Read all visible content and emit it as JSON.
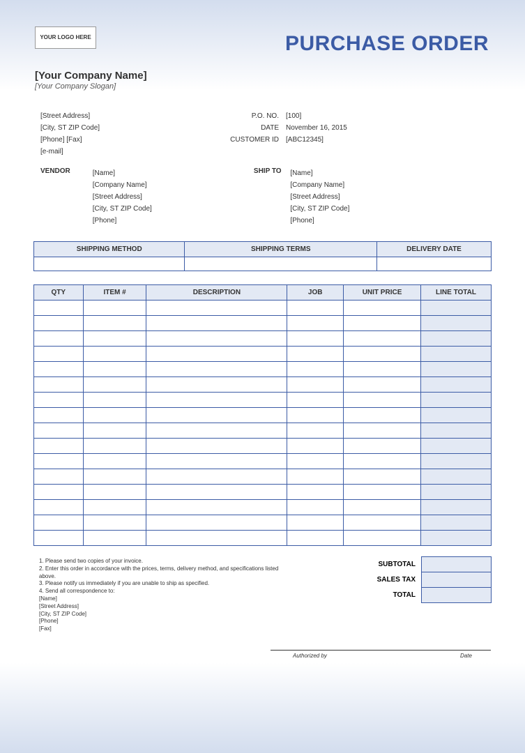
{
  "logo_placeholder": "YOUR LOGO HERE",
  "title": "PURCHASE ORDER",
  "company": {
    "name": "[Your Company Name]",
    "slogan": "[Your Company Slogan]",
    "street": "[Street Address]",
    "city": "[City, ST  ZIP Code]",
    "phone_fax": "[Phone]  [Fax]",
    "email": "[e-mail]"
  },
  "meta": {
    "po_no_label": "P.O. NO.",
    "po_no": "[100]",
    "date_label": "DATE",
    "date": "November 16, 2015",
    "cust_id_label": "CUSTOMER ID",
    "cust_id": "[ABC12345]"
  },
  "vendor": {
    "label": "VENDOR",
    "name": "[Name]",
    "company": "[Company Name]",
    "street": "[Street Address]",
    "city": "[City, ST  ZIP Code]",
    "phone": "[Phone]"
  },
  "shipto": {
    "label": "SHIP TO",
    "name": "[Name]",
    "company": "[Company Name]",
    "street": "[Street Address]",
    "city": "[City, ST  ZIP Code]",
    "phone": "[Phone]"
  },
  "ship_headers": {
    "method": "SHIPPING METHOD",
    "terms": "SHIPPING TERMS",
    "delivery": "DELIVERY DATE"
  },
  "item_headers": {
    "qty": "QTY",
    "item": "ITEM #",
    "desc": "DESCRIPTION",
    "job": "JOB",
    "price": "UNIT PRICE",
    "total": "LINE TOTAL"
  },
  "item_row_count": 16,
  "col_widths": {
    "qty": 70,
    "item": 90,
    "desc": 200,
    "job": 80,
    "price": 110,
    "total": 100
  },
  "totals": {
    "subtotal": "SUBTOTAL",
    "tax": "SALES TAX",
    "total": "TOTAL"
  },
  "notes": {
    "n1": "1. Please send two copies of your invoice.",
    "n2": "2. Enter this order in accordance with the prices, terms, delivery method, and specifications listed above.",
    "n3": "3. Please notify us immediately if you are unable to ship as specified.",
    "n4": "4. Send all correspondence to:",
    "c_name": "[Name]",
    "c_street": "[Street Address]",
    "c_city": "[City, ST  ZIP Code]",
    "c_phone": "[Phone]",
    "c_fax": "[Fax]"
  },
  "sig": {
    "auth": "Authorized by",
    "date": "Date"
  },
  "colors": {
    "accent": "#3b5ba5",
    "header_bg": "#e3e9f4",
    "gradient_light": "#d3ddee",
    "bg": "#ffffff"
  }
}
